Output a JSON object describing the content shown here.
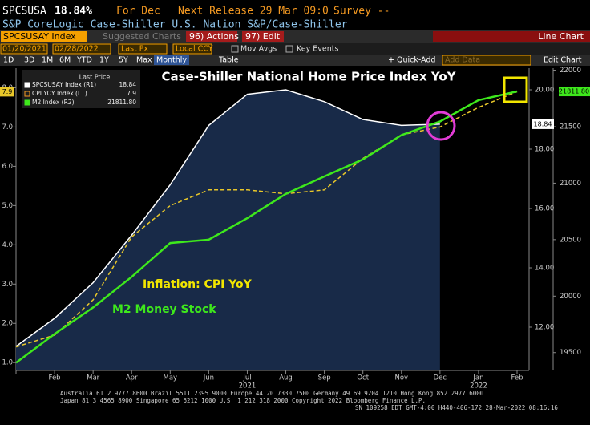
{
  "header": {
    "ticker": "SPCSUSA",
    "value": "18.84%",
    "period": "For Dec",
    "release": "Next Release 29 Mar 09:0",
    "survey": "Survey --",
    "description": "S&P CoreLogic Case-Shiller U.S. Nation S&P/Case-Shiller"
  },
  "toolbar": {
    "security": "SPCSUSAY Index",
    "suggested": "Suggested Charts",
    "actions": "96) Actions",
    "edit": "97) Edit",
    "view": "Line Chart"
  },
  "controls": {
    "start": "01/20/2021",
    "end": "02/28/2022",
    "price": "Last Px",
    "currency": "Local CCY",
    "mov_avgs": "Mov Avgs",
    "key_events": "Key Events"
  },
  "ranges": [
    "1D",
    "3D",
    "1M",
    "6M",
    "YTD",
    "1Y",
    "5Y",
    "Max"
  ],
  "frequency": "Monthly",
  "table": "Table",
  "quick_add": "+ Quick-Add",
  "add_data": "Add Data",
  "edit_chart": "Edit Chart",
  "footer": [
    "Australia 61 2 9777 8600 Brazil 5511 2395 9000 Europe 44 20 7330 7500 Germany 49 69 9204 1210 Hong Kong 852 2977 6000",
    "Japan 81 3 4565 8900      Singapore 65 6212 1000      U.S. 1 212 318 2000         Copyright 2022 Bloomberg Finance L.P.",
    "SN 109258 EDT  GMT-4:00 H440-406-172 28-Mar-2022 08:16:16"
  ],
  "chart_data": {
    "type": "line",
    "title": "Case-Shiller National Home Price Index YoY",
    "legend_title": "Last Price",
    "categories": [
      null,
      "Feb",
      "Mar",
      "Apr",
      "May",
      "Jun",
      "Jul",
      "Aug",
      "Sep",
      "Oct",
      "Nov",
      "Dec",
      "Jan",
      "Feb"
    ],
    "year_labels": [
      "2021",
      "2022"
    ],
    "series": [
      {
        "name": "SPCSUSAY Index (R1)",
        "color": "#ffffff",
        "fill": "#182a48",
        "style": "area",
        "axis": "y2",
        "values": [
          11.35,
          12.3,
          13.5,
          15.1,
          16.8,
          18.8,
          19.85,
          20.0,
          19.6,
          19.0,
          18.8,
          18.84,
          null,
          null
        ]
      },
      {
        "name": "CPI YOY Index (L1)",
        "color": "#e8c72a",
        "style": "dashed",
        "axis": "y",
        "values": [
          1.4,
          1.7,
          2.6,
          4.2,
          5.0,
          5.4,
          5.4,
          5.3,
          5.4,
          6.2,
          6.8,
          7.0,
          7.5,
          7.9
        ]
      },
      {
        "name": "M2 Index (R2)",
        "color": "#3ee81c",
        "style": "solid",
        "axis": "y3",
        "values": [
          19410,
          19665,
          19900,
          20170,
          20470,
          20500,
          20690,
          20905,
          21060,
          21210,
          21425,
          21545,
          21735,
          21811.8
        ],
        "value_labels": [
          null,
          null,
          null,
          null,
          null,
          null,
          null,
          null,
          null,
          null,
          null,
          null,
          null,
          "21811.80"
        ]
      }
    ],
    "ylim": [
      0.8,
      8.5
    ],
    "yticks": [
      {
        "value": 1,
        "label": "1.0"
      },
      {
        "value": 2,
        "label": "2.0"
      },
      {
        "value": 3,
        "label": "3.0"
      },
      {
        "value": 4,
        "label": "4.0"
      },
      {
        "value": 5,
        "label": "5.0"
      },
      {
        "value": 6,
        "label": "6.0"
      },
      {
        "value": 7,
        "label": "7.0"
      },
      {
        "value": 8,
        "label": "8.0"
      }
    ],
    "y2lim": [
      10.54,
      20.73
    ],
    "y2ticks": [
      {
        "value": 12,
        "label": "12.00"
      },
      {
        "value": 14,
        "label": "14.00"
      },
      {
        "value": 16,
        "label": "16.00"
      },
      {
        "value": 18,
        "label": "18.00"
      },
      {
        "value": 20,
        "label": "20.00"
      }
    ],
    "y3lim": [
      19342,
      22018
    ],
    "y3ticks": [
      19500,
      20000,
      20500,
      21000,
      21500,
      22000
    ],
    "annotations": [
      {
        "text": "Inflation: CPI YoY",
        "color": "#f2e600"
      },
      {
        "text": "M2 Money Stock",
        "color": "#3ee81c"
      }
    ]
  }
}
